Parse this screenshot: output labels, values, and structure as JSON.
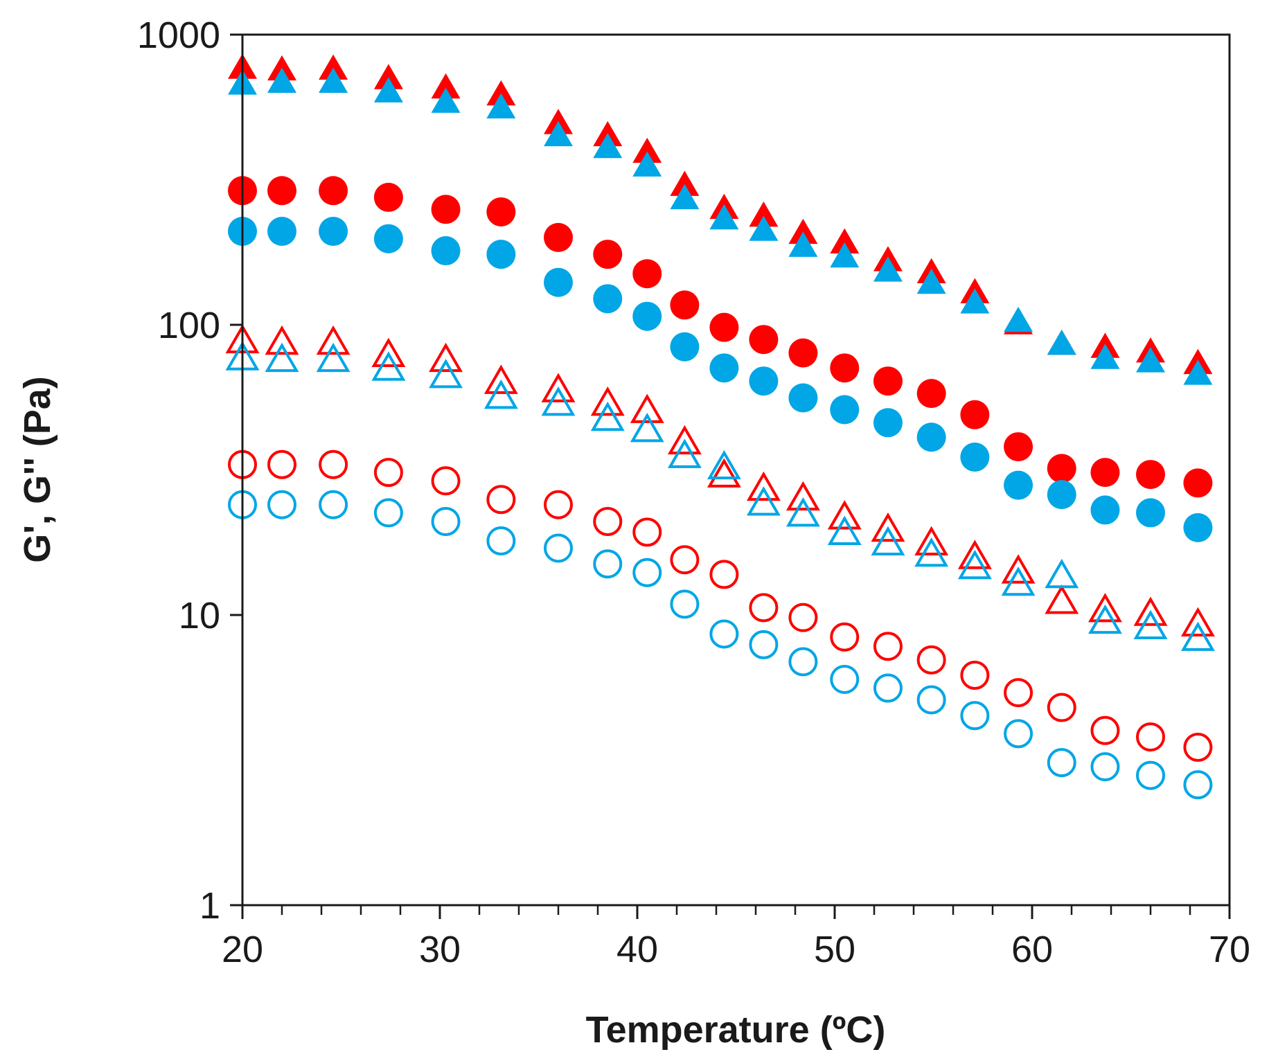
{
  "chart_data": {
    "type": "scatter",
    "title": "",
    "xlabel": "Temperature (ºC)",
    "ylabel": "G', G'' (Pa)",
    "xlim": [
      20,
      70
    ],
    "ylim": [
      1,
      1000
    ],
    "yscale": "log",
    "x_ticks": [
      20,
      30,
      40,
      50,
      60,
      70
    ],
    "x_tick_labels": [
      "20",
      "30",
      "40",
      "50",
      "60",
      "70"
    ],
    "y_ticks": [
      1,
      10,
      100,
      1000
    ],
    "y_tick_labels": [
      "1",
      "10",
      "100",
      "1000"
    ],
    "grid": false,
    "legend": "none",
    "x": [
      20.0,
      22.0,
      24.6,
      27.4,
      30.3,
      33.1,
      36.0,
      38.5,
      40.5,
      42.4,
      44.4,
      46.4,
      48.4,
      50.5,
      52.7,
      54.9,
      57.1,
      59.3,
      61.5,
      63.7,
      66.0,
      68.4
    ],
    "series": [
      {
        "color": "#ff0000",
        "marker": "triangle",
        "fill": true,
        "values": [
          760,
          750,
          755,
          700,
          650,
          615,
          490,
          445,
          390,
          300,
          250,
          235,
          205,
          190,
          165,
          150,
          128,
          100,
          85,
          83,
          80,
          73
        ]
      },
      {
        "color": "#00a6e6",
        "marker": "triangle",
        "fill": true,
        "values": [
          670,
          680,
          680,
          630,
          580,
          555,
          445,
          405,
          350,
          270,
          230,
          210,
          185,
          170,
          152,
          138,
          118,
          102,
          85,
          76,
          74,
          67
        ]
      },
      {
        "color": "#ff0000",
        "marker": "circle",
        "fill": true,
        "values": [
          290,
          290,
          290,
          275,
          250,
          245,
          200,
          175,
          150,
          117,
          98,
          89,
          80,
          71,
          64,
          58,
          49,
          38,
          32,
          31,
          30.5,
          28.5
        ]
      },
      {
        "color": "#00a6e6",
        "marker": "circle",
        "fill": true,
        "values": [
          210,
          210,
          210,
          198,
          180,
          175,
          140,
          123,
          107,
          84,
          71,
          64,
          56,
          51,
          46,
          41,
          35,
          28,
          26,
          23,
          22.5,
          20
        ]
      },
      {
        "color": "#ff0000",
        "marker": "triangle",
        "fill": false,
        "values": [
          87,
          86,
          86,
          78,
          75,
          63,
          59,
          53,
          50,
          39,
          30,
          27,
          25,
          21.5,
          19.5,
          17.5,
          15.7,
          14,
          11,
          10.3,
          10,
          9.2
        ]
      },
      {
        "color": "#00a6e6",
        "marker": "triangle",
        "fill": false,
        "values": [
          76,
          75,
          75,
          70,
          66,
          56,
          53,
          47,
          43,
          35,
          32,
          24,
          22,
          19,
          17.5,
          16,
          14.5,
          12.7,
          13.5,
          9.4,
          9,
          8.2
        ]
      },
      {
        "color": "#ff0000",
        "marker": "circle",
        "fill": false,
        "values": [
          33,
          33,
          33,
          31,
          29,
          25,
          24,
          21,
          19.3,
          15.5,
          13.8,
          10.6,
          9.8,
          8.4,
          7.8,
          7,
          6.2,
          5.4,
          4.8,
          4,
          3.8,
          3.5
        ]
      },
      {
        "color": "#00a6e6",
        "marker": "circle",
        "fill": false,
        "values": [
          24,
          24,
          24,
          22.5,
          21,
          18,
          17,
          15,
          14,
          10.9,
          8.6,
          7.9,
          6.9,
          6,
          5.6,
          5.1,
          4.5,
          3.9,
          3.1,
          3,
          2.8,
          2.6
        ]
      }
    ]
  }
}
